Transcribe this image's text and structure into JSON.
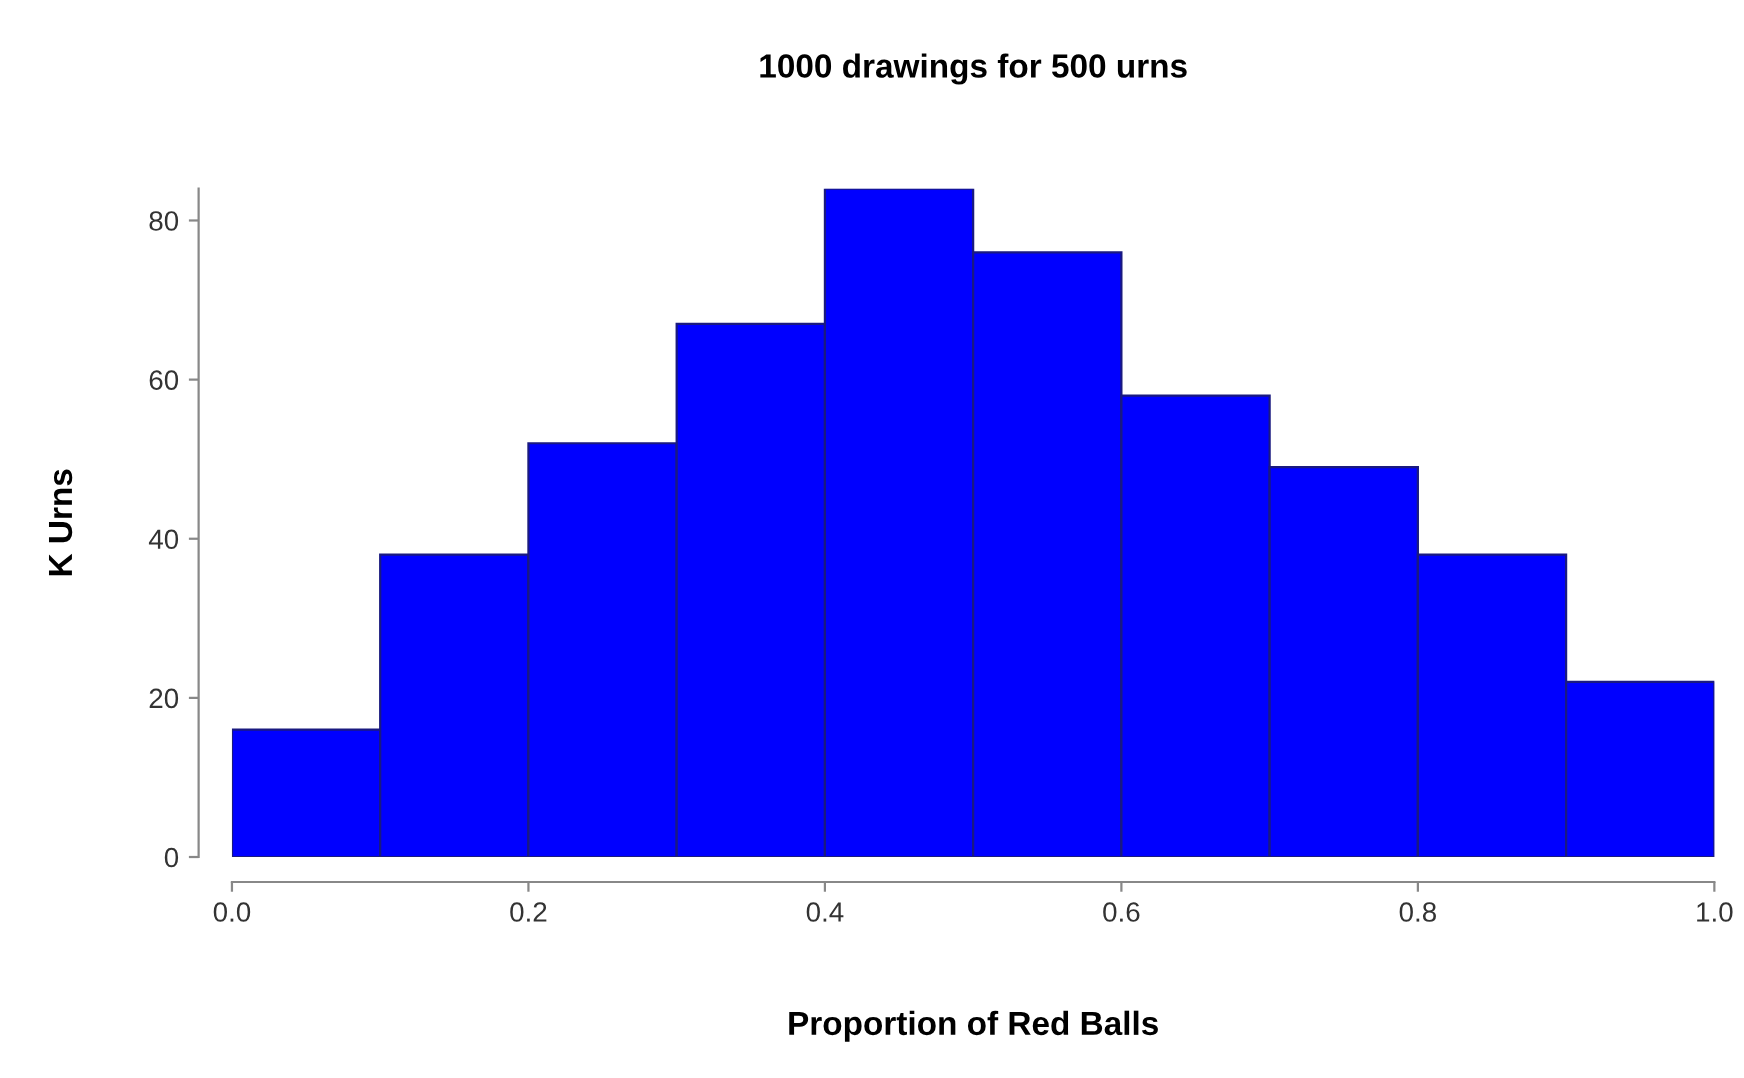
{
  "chart_data": {
    "type": "histogram",
    "title": "1000 drawings for 500 urns",
    "xlabel": "Proportion of Red Balls",
    "ylabel": "K Urns",
    "bins": [
      0.0,
      0.1,
      0.2,
      0.3,
      0.4,
      0.5,
      0.6,
      0.7,
      0.8,
      0.9,
      1.0
    ],
    "values": [
      16,
      38,
      52,
      67,
      84,
      76,
      58,
      49,
      38,
      22
    ],
    "color": "#0000ff",
    "xlim": [
      0,
      1
    ],
    "ylim": [
      0,
      84
    ],
    "xticks": [
      {
        "value": 0,
        "label": "0.0"
      },
      0.2,
      0.4,
      0.6,
      0.8,
      {
        "value": 1,
        "label": "1.0"
      }
    ],
    "yticks": [
      0,
      20,
      40,
      60,
      80
    ],
    "grid": false
  }
}
